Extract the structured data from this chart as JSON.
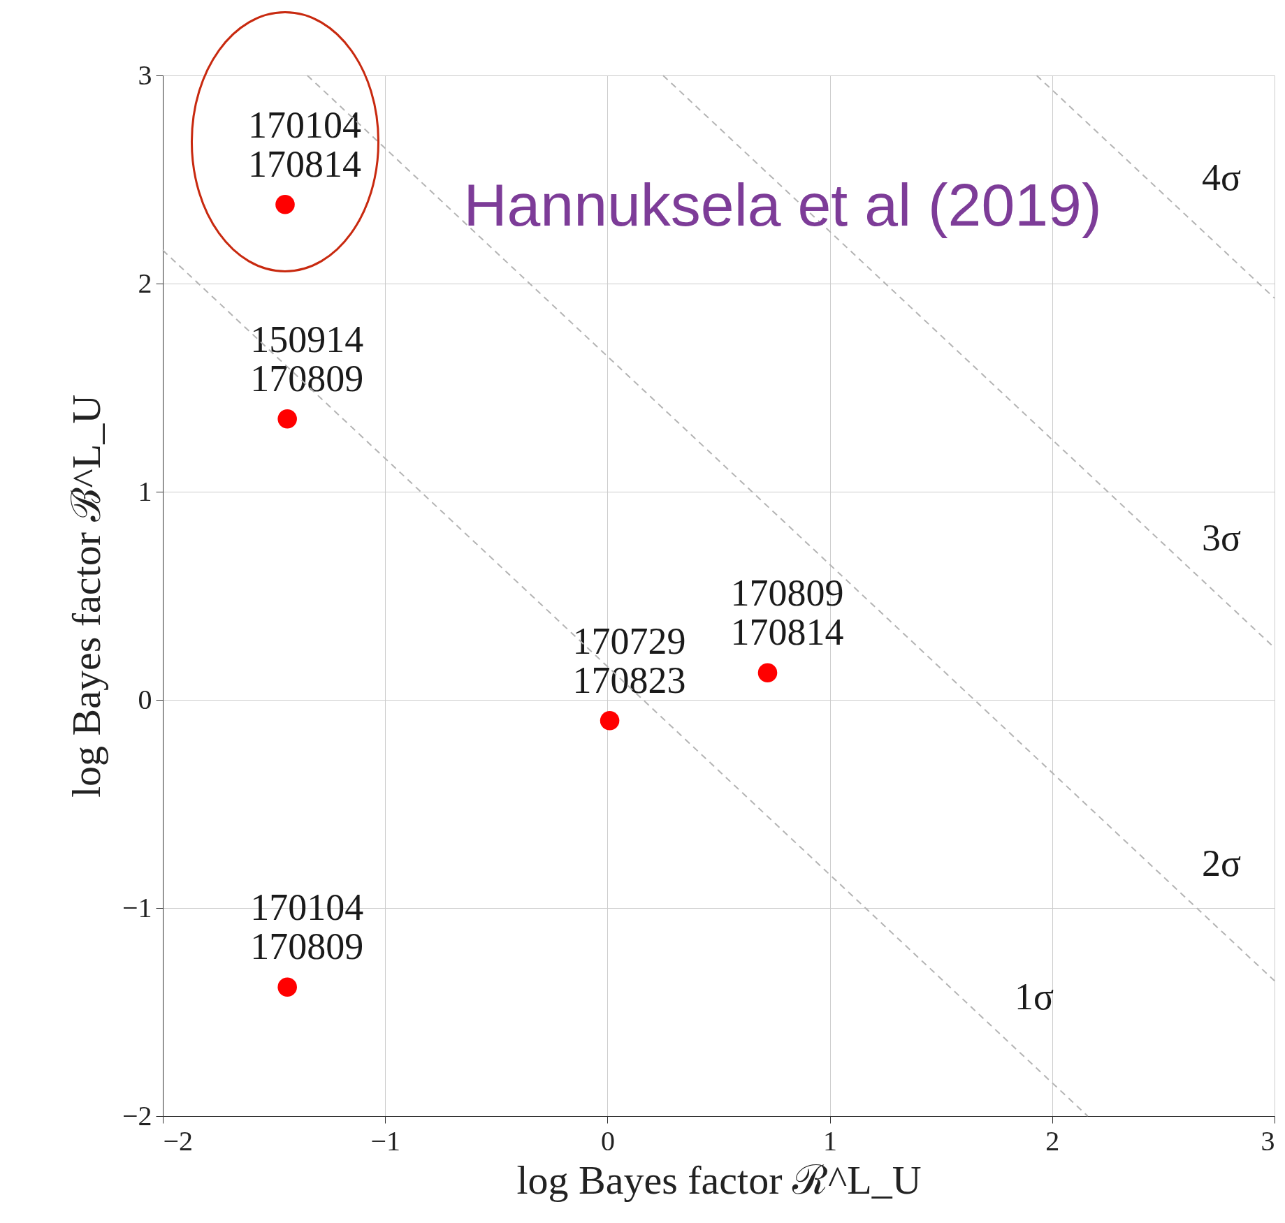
{
  "chart_data": {
    "type": "scatter",
    "xlabel": "log Bayes factor ℛ^L_U",
    "ylabel": "log Bayes factor ℬ^L_U",
    "xlim": [
      -2,
      3
    ],
    "ylim": [
      -2,
      3
    ],
    "xticks": [
      -2,
      -1,
      0,
      1,
      2,
      3
    ],
    "yticks": [
      -2,
      -1,
      0,
      1,
      2,
      3
    ],
    "grid": true,
    "series": [
      {
        "color": "#ff0000",
        "marker": "circle",
        "x": [
          -1.45,
          -1.44,
          -1.44,
          0.01,
          0.72
        ],
        "values": [
          2.38,
          1.35,
          -1.38,
          -0.1,
          0.13
        ],
        "value_labels": [
          "170104\n170814",
          "150914\n170809",
          "170104\n170809",
          "170729\n170823",
          "170809\n170814"
        ]
      },
      {
        "type": "line",
        "color": "#b4b4b4",
        "line_style": "dashed",
        "x": [
          -2,
          2.16
        ],
        "values": [
          2.16,
          -2
        ]
      },
      {
        "type": "line",
        "color": "#b4b4b4",
        "line_style": "dashed",
        "x": [
          -1.35,
          3
        ],
        "values": [
          3,
          -1.35
        ]
      },
      {
        "type": "line",
        "color": "#b4b4b4",
        "line_style": "dashed",
        "x": [
          0.25,
          3
        ],
        "values": [
          3,
          0.25
        ]
      },
      {
        "type": "line",
        "color": "#b4b4b4",
        "line_style": "dashed",
        "x": [
          1.93,
          3
        ],
        "values": [
          3,
          1.93
        ]
      }
    ],
    "annotations": [
      "1σ",
      "2σ",
      "3σ",
      "4σ",
      "Hannuksela et al (2019)"
    ]
  }
}
